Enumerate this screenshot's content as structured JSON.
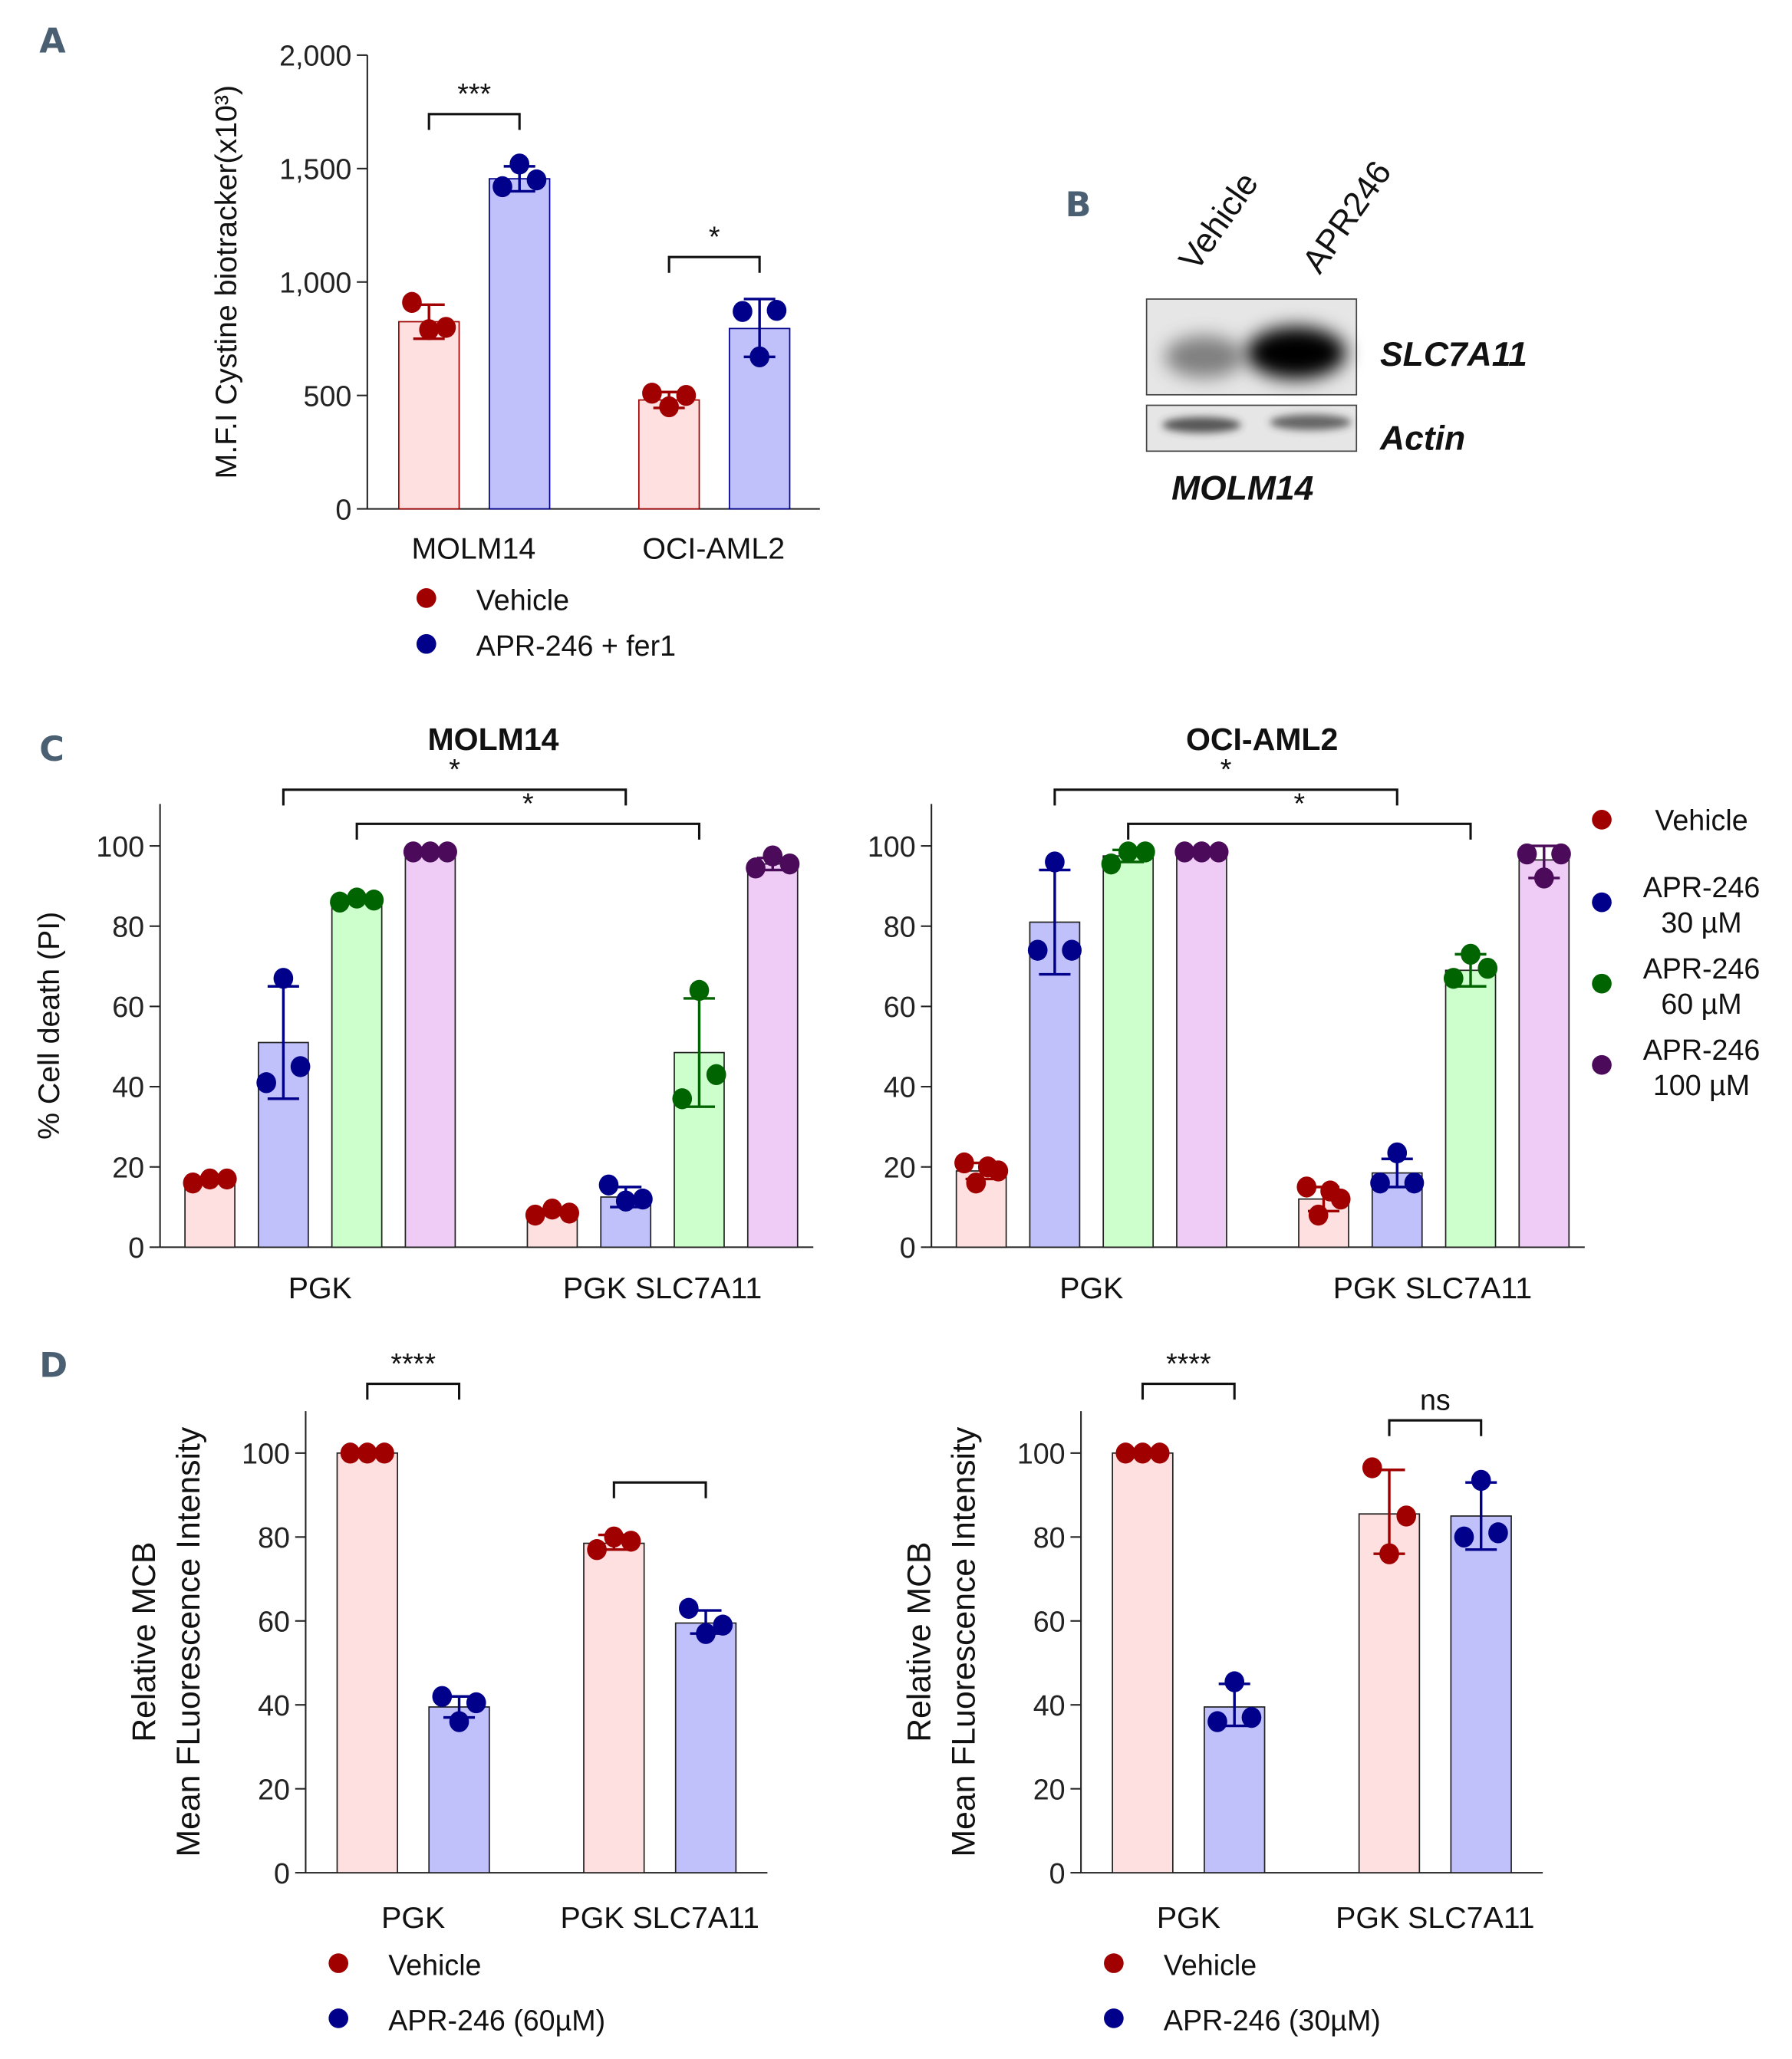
{
  "panel_labels": [
    "A",
    "B",
    "C",
    "D"
  ],
  "colors": {
    "vehicle_point": "#a00000",
    "vehicle_fill": "#fde0df",
    "apr30_point": "#00008b",
    "apr30_fill": "#c0c0fb",
    "apr60_point": "#006400",
    "apr60_fill": "#ccffcc",
    "apr100_point": "#4b0a5a",
    "apr100_fill": "#eeccf5",
    "panel_label": "#4a6072"
  },
  "blot": {
    "lanes": [
      "Vehicle",
      "APR246"
    ],
    "bands": [
      "SLC7A11",
      "Actin"
    ],
    "cell_line": "MOLM14",
    "slc7a11_relative_intensity": [
      0.35,
      1.0
    ],
    "actin_relative_intensity": [
      0.8,
      0.75
    ]
  },
  "chart_data": [
    {
      "id": "A",
      "type": "bar",
      "title": "",
      "ylabel": "M.F.I Cystine biotracker(x10³)",
      "xlabel": "",
      "ylim": [
        0,
        2000
      ],
      "yticks": [
        0,
        500,
        1000,
        1500,
        2000
      ],
      "ytick_labels": [
        "0",
        "500",
        "1,000",
        "1,500",
        "2,000"
      ],
      "categories": [
        "MOLM14",
        "OCI-AML2"
      ],
      "legend_position": "bottom",
      "series": [
        {
          "name": "Vehicle",
          "color": "vehicle",
          "values": [
            825,
            480
          ],
          "points": [
            [
              910,
              790,
              800
            ],
            [
              510,
              450,
              500
            ]
          ],
          "err": [
            [
              750,
              900
            ],
            [
              445,
              515
            ]
          ]
        },
        {
          "name": "APR-246 + fer1",
          "color": "apr30",
          "values": [
            1455,
            795
          ],
          "points": [
            [
              1420,
              1520,
              1450
            ],
            [
              870,
              670,
              875
            ]
          ],
          "err": [
            [
              1400,
              1510
            ],
            [
              670,
              925
            ]
          ]
        }
      ],
      "brackets": [
        {
          "from": 0,
          "to": 1,
          "y": 1740,
          "label": "***"
        },
        {
          "from": 2,
          "to": 3,
          "y": 1110,
          "label": "*"
        }
      ]
    },
    {
      "id": "C-MOLM14",
      "type": "bar",
      "title": "MOLM14",
      "ylabel": "% Cell death (PI)",
      "xlabel": "",
      "ylim": [
        0,
        110
      ],
      "yticks": [
        0,
        20,
        40,
        60,
        80,
        100
      ],
      "ytick_labels": [
        "0",
        "20",
        "40",
        "60",
        "80",
        "100"
      ],
      "categories": [
        "PGK",
        "PGK SLC7A11"
      ],
      "series": [
        {
          "name": "Vehicle",
          "color": "vehicle",
          "values": [
            17,
            8.5
          ],
          "points": [
            [
              16,
              17,
              17
            ],
            [
              8,
              9.5,
              8.5
            ]
          ],
          "err": [
            [
              16,
              17.5
            ],
            [
              8,
              9.5
            ]
          ]
        },
        {
          "name": "APR-246 30 µM",
          "color": "apr30",
          "values": [
            51,
            12.5
          ],
          "points": [
            [
              41,
              67,
              45
            ],
            [
              15.5,
              11.5,
              12
            ]
          ],
          "err": [
            [
              37,
              65
            ],
            [
              10,
              15
            ]
          ]
        },
        {
          "name": "APR-246 60 µM",
          "color": "apr60",
          "values": [
            86.5,
            48.5
          ],
          "points": [
            [
              86,
              87,
              86.5
            ],
            [
              37,
              64,
              43
            ]
          ],
          "err": [
            [
              86,
              87
            ],
            [
              35,
              62
            ]
          ]
        },
        {
          "name": "APR-246 100 µM",
          "color": "apr100",
          "values": [
            98.5,
            95.5
          ],
          "points": [
            [
              98.5,
              98.5,
              98.5
            ],
            [
              94.5,
              97.5,
              95.5
            ]
          ],
          "err": [
            [
              98.5,
              98.5
            ],
            [
              94,
              97
            ]
          ]
        }
      ],
      "brackets": [
        {
          "from": 1,
          "to": 5,
          "y": 114,
          "label": "*"
        },
        {
          "from": 2,
          "to": 6,
          "y": 105.5,
          "label": "*"
        }
      ]
    },
    {
      "id": "C-OCI-AML2",
      "type": "bar",
      "title": "OCI-AML2",
      "ylabel": "",
      "xlabel": "",
      "ylim": [
        0,
        110
      ],
      "yticks": [
        0,
        20,
        40,
        60,
        80,
        100
      ],
      "ytick_labels": [
        "0",
        "20",
        "40",
        "60",
        "80",
        "100"
      ],
      "categories": [
        "PGK",
        "PGK SLC7A11"
      ],
      "legend_position": "right",
      "legend": [
        "Vehicle",
        "APR-246\n30 µM",
        "APR-246\n60 µM",
        "APR-246\n100 µM"
      ],
      "series": [
        {
          "name": "Vehicle",
          "color": "vehicle",
          "values": [
            19,
            12
          ],
          "points": [
            [
              21,
              16,
              20,
              19
            ],
            [
              15,
              8,
              14,
              12
            ]
          ],
          "err": [
            [
              17,
              21
            ],
            [
              9,
              15
            ]
          ]
        },
        {
          "name": "APR-246 30 µM",
          "color": "apr30",
          "values": [
            81,
            18.5
          ],
          "points": [
            [
              74,
              96,
              74
            ],
            [
              16,
              23.5,
              16
            ]
          ],
          "err": [
            [
              68,
              94
            ],
            [
              15,
              22
            ]
          ]
        },
        {
          "name": "APR-246 60 µM",
          "color": "apr60",
          "values": [
            97.5,
            69
          ],
          "points": [
            [
              95.5,
              98.5,
              98.5
            ],
            [
              67,
              73,
              69.5
            ]
          ],
          "err": [
            [
              96,
              99
            ],
            [
              65,
              73
            ]
          ]
        },
        {
          "name": "APR-246 100 µM",
          "color": "apr100",
          "values": [
            98.5,
            96.5
          ],
          "points": [
            [
              98.5,
              98.5,
              98.5
            ],
            [
              98,
              92,
              98
            ]
          ],
          "err": [
            [
              98.5,
              98.5
            ],
            [
              92,
              100
            ]
          ]
        }
      ],
      "brackets": [
        {
          "from": 1,
          "to": 5,
          "y": 114,
          "label": "*"
        },
        {
          "from": 2,
          "to": 6,
          "y": 105.5,
          "label": "*"
        }
      ]
    },
    {
      "id": "D-60uM",
      "type": "bar",
      "title": "",
      "ylabel": [
        "Relative MCB",
        "Mean FLuorescence Intensity"
      ],
      "xlabel": "",
      "ylim": [
        0,
        110
      ],
      "yticks": [
        0,
        20,
        40,
        60,
        80,
        100
      ],
      "ytick_labels": [
        "0",
        "20",
        "40",
        "60",
        "80",
        "100"
      ],
      "categories": [
        "PGK",
        "PGK SLC7A11"
      ],
      "legend_position": "bottom",
      "series": [
        {
          "name": "Vehicle",
          "color": "vehicle",
          "values": [
            100,
            78.5
          ],
          "points": [
            [
              100,
              100,
              100
            ],
            [
              77,
              80,
              79
            ]
          ],
          "err": [
            [
              100,
              100
            ],
            [
              77,
              80.5
            ]
          ]
        },
        {
          "name": "APR-246 (60µM)",
          "color": "apr30",
          "values": [
            39.5,
            59.5
          ],
          "points": [
            [
              42,
              36,
              40.5
            ],
            [
              63,
              57,
              59
            ]
          ],
          "err": [
            [
              37,
              42
            ],
            [
              57,
              62.5
            ]
          ]
        }
      ],
      "brackets": [
        {
          "from": 0,
          "to": 1,
          "y": 116.5,
          "label": "****"
        },
        {
          "from": 2,
          "to": 3,
          "y": 93,
          "label": ""
        }
      ]
    },
    {
      "id": "D-30uM",
      "type": "bar",
      "title": "",
      "ylabel": [
        "Relative MCB",
        "Mean FLuorescence Intensity"
      ],
      "xlabel": "",
      "ylim": [
        0,
        110
      ],
      "yticks": [
        0,
        20,
        40,
        60,
        80,
        100
      ],
      "ytick_labels": [
        "0",
        "20",
        "40",
        "60",
        "80",
        "100"
      ],
      "categories": [
        "PGK",
        "PGK SLC7A11"
      ],
      "legend_position": "bottom",
      "series": [
        {
          "name": "Vehicle",
          "color": "vehicle",
          "values": [
            100,
            85.5
          ],
          "points": [
            [
              100,
              100,
              100
            ],
            [
              96.5,
              76,
              85
            ]
          ],
          "err": [
            [
              100,
              100
            ],
            [
              76,
              96
            ]
          ]
        },
        {
          "name": "APR-246 (30µM)",
          "color": "apr30",
          "values": [
            39.5,
            85
          ],
          "points": [
            [
              36,
              45.5,
              37
            ],
            [
              80,
              93.5,
              81
            ]
          ],
          "err": [
            [
              35,
              45
            ],
            [
              77,
              93
            ]
          ]
        }
      ],
      "brackets": [
        {
          "from": 0,
          "to": 1,
          "y": 116.5,
          "label": "****"
        },
        {
          "from": 2,
          "to": 3,
          "y": 107.8,
          "label": "ns"
        }
      ]
    }
  ]
}
